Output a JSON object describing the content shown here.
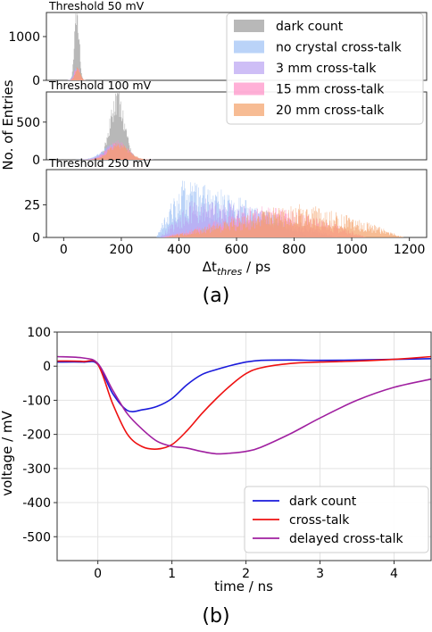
{
  "chart_data": [
    {
      "type": "area",
      "panel_label": "(a)",
      "xlabel_symbol": "Δt",
      "xlabel_sub": "thres",
      "xlabel_unit": " / ps",
      "ylabel": "No. of Entries",
      "xlim": [
        -60,
        1260
      ],
      "xticks": [
        0,
        200,
        400,
        600,
        800,
        1000,
        1200
      ],
      "legend": {
        "placement": "top-right",
        "entries": [
          "dark count",
          "no crystal cross-talk",
          "3 mm cross-talk",
          "15 mm cross-talk",
          "20 mm cross-talk"
        ]
      },
      "series_colors": [
        "#b0b0b0",
        "#9cc0f5",
        "#b9a3f2",
        "#ff8fc6",
        "#f4a067"
      ],
      "subplots": [
        {
          "title": "Threshold 50 mV",
          "ylim": [
            0,
            1550
          ],
          "yticks": [
            0,
            1000
          ],
          "series": [
            {
              "name": "dark count",
              "center": 45,
              "width": 8,
              "peak": 1520
            },
            {
              "name": "no crystal cross-talk",
              "center": 42,
              "width": 9,
              "peak": 250
            },
            {
              "name": "3 mm cross-talk",
              "center": 44,
              "width": 9,
              "peak": 280
            },
            {
              "name": "15 mm cross-talk",
              "center": 46,
              "width": 9,
              "peak": 300
            },
            {
              "name": "20 mm cross-talk",
              "center": 47,
              "width": 9,
              "peak": 260
            }
          ]
        },
        {
          "title": "Threshold 100 mV",
          "ylim": [
            0,
            900
          ],
          "yticks": [
            0,
            500
          ],
          "series": [
            {
              "name": "dark count",
              "center": 185,
              "width": 25,
              "peak": 780
            },
            {
              "name": "no crystal cross-talk",
              "center": 175,
              "width": 40,
              "peak": 180
            },
            {
              "name": "3 mm cross-talk",
              "center": 180,
              "width": 38,
              "peak": 200
            },
            {
              "name": "15 mm cross-talk",
              "center": 185,
              "width": 35,
              "peak": 210
            },
            {
              "name": "20 mm cross-talk",
              "center": 190,
              "width": 35,
              "peak": 190
            }
          ]
        },
        {
          "title": "Threshold 250 mV",
          "ylim": [
            0,
            52
          ],
          "yticks": [
            0,
            25
          ],
          "series": [
            {
              "name": "no crystal cross-talk",
              "start": 320,
              "rise": 400,
              "peak": 40,
              "end": 850
            },
            {
              "name": "3 mm cross-talk",
              "start": 330,
              "rise": 450,
              "peak": 28,
              "end": 950
            },
            {
              "name": "15 mm cross-talk",
              "start": 340,
              "rise": 680,
              "peak": 22,
              "end": 1050
            },
            {
              "name": "20 mm cross-talk",
              "start": 350,
              "rise": 780,
              "peak": 24,
              "end": 1180
            }
          ]
        }
      ]
    },
    {
      "type": "line",
      "panel_label": "(b)",
      "xlabel": "time / ns",
      "ylabel": "voltage / mV",
      "xlim": [
        -0.55,
        4.5
      ],
      "ylim": [
        -570,
        100
      ],
      "xticks": [
        0,
        1,
        2,
        3,
        4
      ],
      "yticks": [
        100,
        0,
        -100,
        -200,
        -300,
        -400,
        -500
      ],
      "grid": true,
      "legend": {
        "placement": "lower-right"
      },
      "series": [
        {
          "name": "dark count",
          "color": "#1a1adb",
          "x": [
            -0.55,
            -0.2,
            0.0,
            0.2,
            0.4,
            0.6,
            0.8,
            1.0,
            1.2,
            1.4,
            1.6,
            1.8,
            2.0,
            2.2,
            2.6,
            3.0,
            3.5,
            4.0,
            4.5
          ],
          "y": [
            12,
            12,
            5,
            -80,
            -130,
            -128,
            -118,
            -95,
            -55,
            -25,
            -10,
            2,
            12,
            17,
            18,
            17,
            18,
            20,
            22
          ]
        },
        {
          "name": "cross-talk",
          "color": "#ee1111",
          "x": [
            -0.55,
            -0.2,
            0.0,
            0.2,
            0.4,
            0.6,
            0.8,
            1.0,
            1.2,
            1.4,
            1.6,
            1.8,
            2.0,
            2.2,
            2.6,
            3.0,
            3.5,
            4.0,
            4.5
          ],
          "y": [
            15,
            14,
            5,
            -110,
            -200,
            -236,
            -243,
            -230,
            -190,
            -140,
            -95,
            -55,
            -22,
            -5,
            8,
            12,
            15,
            20,
            28
          ]
        },
        {
          "name": "delayed cross-talk",
          "color": "#a020a0",
          "x": [
            -0.55,
            -0.2,
            0.0,
            0.2,
            0.4,
            0.6,
            0.8,
            1.0,
            1.2,
            1.4,
            1.6,
            1.8,
            2.0,
            2.2,
            2.6,
            3.0,
            3.5,
            4.0,
            4.5
          ],
          "y": [
            28,
            24,
            8,
            -70,
            -140,
            -185,
            -220,
            -235,
            -240,
            -250,
            -257,
            -255,
            -250,
            -238,
            -198,
            -152,
            -100,
            -62,
            -38
          ]
        }
      ]
    }
  ]
}
